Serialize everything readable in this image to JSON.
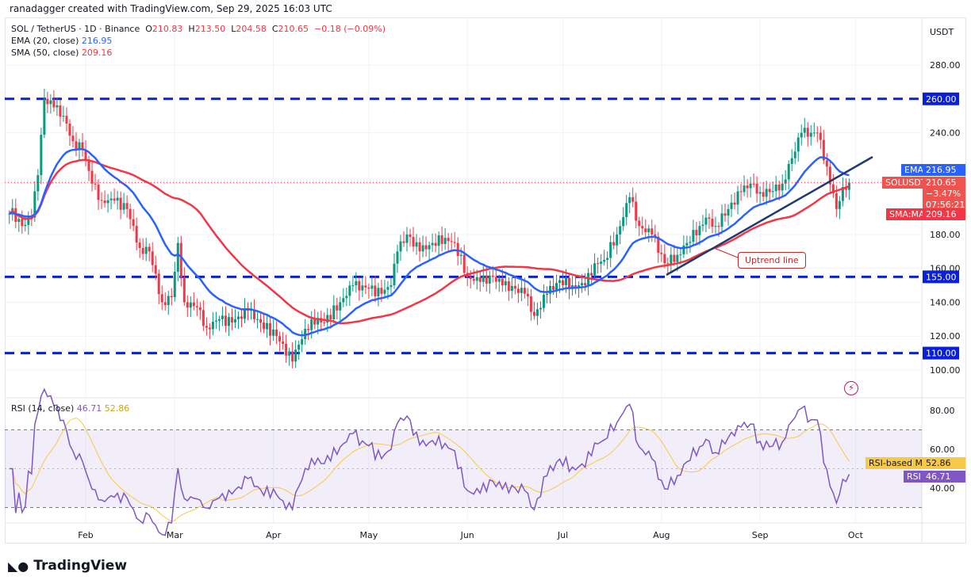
{
  "credit": "ranadagger created with TradingView.com, Sep 29, 2025 16:03 UTC",
  "legend": {
    "symbol": "SOL / TetherUS · 1D · Binance",
    "o_label": "O",
    "o": "210.83",
    "h_label": "H",
    "h": "213.50",
    "l_label": "L",
    "l": "204.58",
    "c_label": "C",
    "c": "210.65",
    "change": "−0.18 (−0.09%)",
    "ema_label": "EMA (20, close)",
    "ema": "216.95",
    "sma_label": "SMA (50, close)",
    "sma": "209.16",
    "rsi_label": "RSI (14, close)",
    "rsi": "46.71",
    "rsi_ma": "52.86"
  },
  "axis": {
    "currency": "USDT",
    "price_ticks": [
      "280.00",
      "240.00",
      "180.00",
      "160.00",
      "140.00",
      "120.00",
      "100.00"
    ],
    "rsi_ticks": [
      "80.00",
      "60.00",
      "40.00"
    ],
    "months": [
      "Feb",
      "Mar",
      "Apr",
      "May",
      "Jun",
      "Jul",
      "Aug",
      "Sep",
      "Oct"
    ]
  },
  "levels": [
    {
      "value": 260,
      "label": "260.00"
    },
    {
      "value": 155,
      "label": "155.00"
    },
    {
      "value": 110,
      "label": "110.00"
    }
  ],
  "tags": {
    "ema_name": "EMA",
    "ema_value": "216.95",
    "sym_name": "SOLUSDT",
    "price": "210.65",
    "pct": "−3.47%",
    "countdown": "07:56:21",
    "sma_name": "SMA:MA",
    "sma_value": "209.16",
    "rsima_name": "RSI-based MA",
    "rsima_value": "52.86",
    "rsi_name": "RSI",
    "rsi_value": "46.71"
  },
  "annotation": "Uptrend line",
  "brand": "TradingView",
  "colors": {
    "up": "#089981",
    "down": "#f23645",
    "ema": "#2962ff",
    "sma": "#f23645",
    "rsi": "#7e57c2",
    "rsi_ma": "#f7c948",
    "level": "#0a1fd8",
    "trend": "#1e3a6e"
  },
  "chart_data": {
    "type": "candlestick",
    "symbol": "SOLUSDT",
    "interval": "1D",
    "ylim": [
      95,
      300
    ],
    "closes": [
      [
        "2025-01-08",
        195
      ],
      [
        "2025-01-12",
        185
      ],
      [
        "2025-01-15",
        190
      ],
      [
        "2025-01-17",
        215
      ],
      [
        "2025-01-19",
        260
      ],
      [
        "2025-01-22",
        255
      ],
      [
        "2025-01-25",
        250
      ],
      [
        "2025-01-28",
        235
      ],
      [
        "2025-01-31",
        230
      ],
      [
        "2025-02-03",
        210
      ],
      [
        "2025-02-06",
        200
      ],
      [
        "2025-02-10",
        200
      ],
      [
        "2025-02-14",
        195
      ],
      [
        "2025-02-18",
        172
      ],
      [
        "2025-02-21",
        170
      ],
      [
        "2025-02-25",
        140
      ],
      [
        "2025-02-28",
        143
      ],
      [
        "2025-03-02",
        175
      ],
      [
        "2025-03-04",
        140
      ],
      [
        "2025-03-08",
        137
      ],
      [
        "2025-03-11",
        125
      ],
      [
        "2025-03-15",
        130
      ],
      [
        "2025-03-19",
        128
      ],
      [
        "2025-03-24",
        135
      ],
      [
        "2025-03-28",
        128
      ],
      [
        "2025-04-02",
        120
      ],
      [
        "2025-04-07",
        105
      ],
      [
        "2025-04-09",
        115
      ],
      [
        "2025-04-13",
        130
      ],
      [
        "2025-04-17",
        128
      ],
      [
        "2025-04-22",
        140
      ],
      [
        "2025-04-26",
        150
      ],
      [
        "2025-05-01",
        148
      ],
      [
        "2025-05-05",
        145
      ],
      [
        "2025-05-08",
        150
      ],
      [
        "2025-05-10",
        170
      ],
      [
        "2025-05-13",
        180
      ],
      [
        "2025-05-17",
        170
      ],
      [
        "2025-05-21",
        175
      ],
      [
        "2025-05-25",
        178
      ],
      [
        "2025-05-28",
        175
      ],
      [
        "2025-06-01",
        155
      ],
      [
        "2025-06-05",
        152
      ],
      [
        "2025-06-09",
        155
      ],
      [
        "2025-06-12",
        150
      ],
      [
        "2025-06-16",
        148
      ],
      [
        "2025-06-19",
        145
      ],
      [
        "2025-06-22",
        132
      ],
      [
        "2025-06-26",
        145
      ],
      [
        "2025-06-30",
        153
      ],
      [
        "2025-07-04",
        150
      ],
      [
        "2025-07-08",
        150
      ],
      [
        "2025-07-11",
        163
      ],
      [
        "2025-07-14",
        165
      ],
      [
        "2025-07-18",
        180
      ],
      [
        "2025-07-22",
        202
      ],
      [
        "2025-07-25",
        185
      ],
      [
        "2025-07-29",
        180
      ],
      [
        "2025-08-02",
        163
      ],
      [
        "2025-08-06",
        168
      ],
      [
        "2025-08-09",
        175
      ],
      [
        "2025-08-13",
        185
      ],
      [
        "2025-08-15",
        190
      ],
      [
        "2025-08-18",
        185
      ],
      [
        "2025-08-22",
        195
      ],
      [
        "2025-08-26",
        205
      ],
      [
        "2025-08-29",
        210
      ],
      [
        "2025-09-01",
        205
      ],
      [
        "2025-09-04",
        205
      ],
      [
        "2025-09-08",
        210
      ],
      [
        "2025-09-11",
        225
      ],
      [
        "2025-09-14",
        240
      ],
      [
        "2025-09-17",
        240
      ],
      [
        "2025-09-19",
        240
      ],
      [
        "2025-09-22",
        220
      ],
      [
        "2025-09-25",
        195
      ],
      [
        "2025-09-27",
        208
      ],
      [
        "2025-09-29",
        210.65
      ]
    ],
    "rsi_levels": [
      70,
      30
    ],
    "rsi_ylim": [
      20,
      85
    ]
  }
}
